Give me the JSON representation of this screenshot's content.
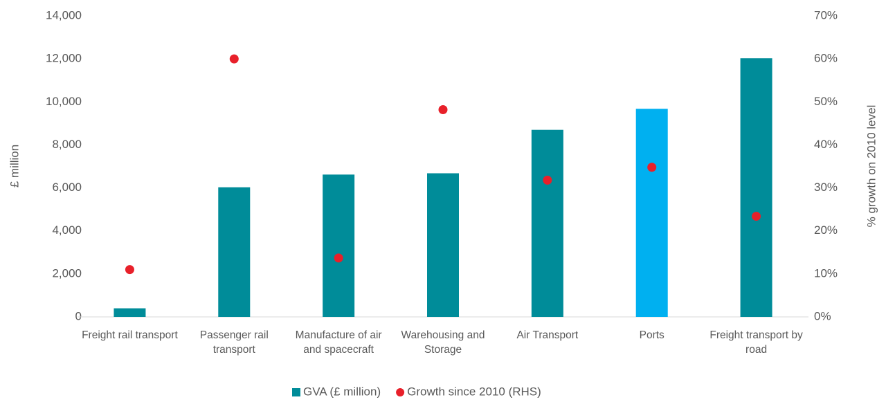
{
  "chart_data": {
    "type": "bar",
    "y_label": "£ million",
    "y2_label": "% growth on 2010 level",
    "categories": [
      "Freight rail transport",
      "Passenger rail transport",
      "Manufacture of air and spacecraft",
      "Warehousing and Storage",
      "Air Transport",
      "Ports",
      "Freight transport by road"
    ],
    "series": [
      {
        "name": "GVA (£ million)",
        "type": "bar",
        "color": "#008c99",
        "colors": [
          "#008c99",
          "#008c99",
          "#008c99",
          "#008c99",
          "#008c99",
          "#00b0f0",
          "#008c99"
        ],
        "values": [
          400,
          6030,
          6620,
          6680,
          8700,
          9680,
          12030
        ]
      },
      {
        "name": "Growth since 2010 (RHS)",
        "type": "scatter",
        "color": "#e8202a",
        "axis": "y2",
        "values": [
          11,
          60,
          13.7,
          48.2,
          31.8,
          34.8,
          23.4
        ]
      }
    ],
    "ylim": [
      0,
      14000
    ],
    "yticks": [
      0,
      {
        "value": 2000,
        "label": "2,000"
      },
      {
        "value": 4000,
        "label": "4,000"
      },
      {
        "value": 6000,
        "label": "6,000"
      },
      {
        "value": 8000,
        "label": "8,000"
      },
      {
        "value": 10000,
        "label": "10,000"
      },
      {
        "value": 12000,
        "label": "12,000"
      },
      {
        "value": 14000,
        "label": "14,000"
      }
    ],
    "y2lim": [
      0,
      70
    ],
    "y2ticks": [
      {
        "value": 0,
        "label": "0%"
      },
      {
        "value": 10,
        "label": "10%"
      },
      {
        "value": 20,
        "label": "20%"
      },
      {
        "value": 30,
        "label": "30%"
      },
      {
        "value": 40,
        "label": "40%"
      },
      {
        "value": 50,
        "label": "50%"
      },
      {
        "value": 60,
        "label": "60%"
      },
      {
        "value": 70,
        "label": "70%"
      }
    ],
    "legend": "bottom"
  }
}
